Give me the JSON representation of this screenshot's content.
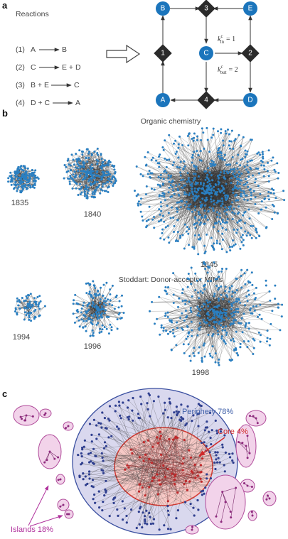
{
  "panel_a": {
    "label": "a",
    "reactions_title": "Reactions",
    "reactions": [
      {
        "num": "(1)",
        "lhs": "A",
        "rhs": "B"
      },
      {
        "num": "(2)",
        "lhs": "C",
        "rhs": "E + D"
      },
      {
        "num": "(3)",
        "lhs": "B + E",
        "rhs": "C"
      },
      {
        "num": "(4)",
        "lhs": "D + C",
        "rhs": "A"
      }
    ],
    "chemical_nodes": [
      "B",
      "E",
      "C",
      "A",
      "D"
    ],
    "reaction_nodes": [
      "1",
      "2",
      "3",
      "4"
    ],
    "k_in_symbol": "k",
    "k_in_super": "c",
    "k_in_sub": "in",
    "k_in_value": "= 1",
    "k_out_symbol": "k",
    "k_out_super": "c",
    "k_out_sub": "out",
    "k_out_value": "= 2"
  },
  "panel_b": {
    "label": "b",
    "organic_title": "Organic chemistry",
    "organic_years": [
      "1835",
      "1840",
      "1845"
    ],
    "stoddart_title": "Stoddart: Donor-acceptor MIMs",
    "stoddart_years": [
      "1994",
      "1996",
      "1998"
    ]
  },
  "panel_c": {
    "label": "c",
    "periphery_label": "Periphery 78%",
    "core_label": "Core 4%",
    "islands_label": "Islands 18%"
  },
  "colors": {
    "chem_node": "#1b75bc",
    "reaction_node": "#2b2b2b",
    "network_node": "#2a7fc1",
    "periphery_fill": "#d9d8ee",
    "periphery_stroke": "#3a4fa0",
    "core_fill": "#f6c9c6",
    "core_stroke": "#d63a32",
    "island_fill": "#f2d3ea",
    "island_stroke": "#b04b9a",
    "periphery_text": "#3d5ea8",
    "core_text": "#d12a2a",
    "islands_text": "#b0319c"
  }
}
